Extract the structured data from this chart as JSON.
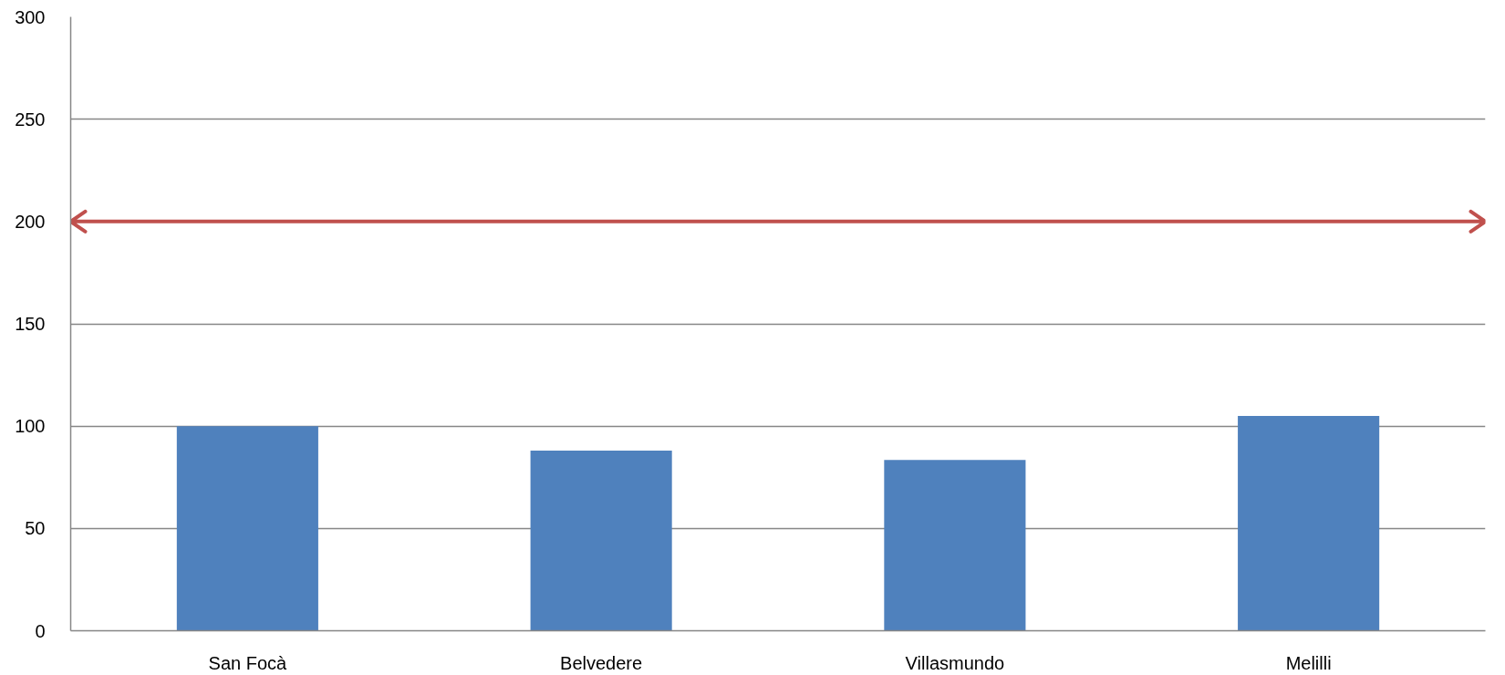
{
  "chart_data": {
    "type": "bar",
    "categories": [
      "San Focà",
      "Belvedere",
      "Villasmundo",
      "Melilli"
    ],
    "values": [
      100,
      88,
      83.5,
      105
    ],
    "color": "#4f81bd",
    "ylim": [
      0,
      300
    ],
    "yticks": [
      0,
      50,
      100,
      150,
      200,
      250,
      300
    ],
    "grid": "y",
    "ref_lines": [
      {
        "axis": "y",
        "value": 200,
        "color": "#c0504d"
      }
    ]
  }
}
